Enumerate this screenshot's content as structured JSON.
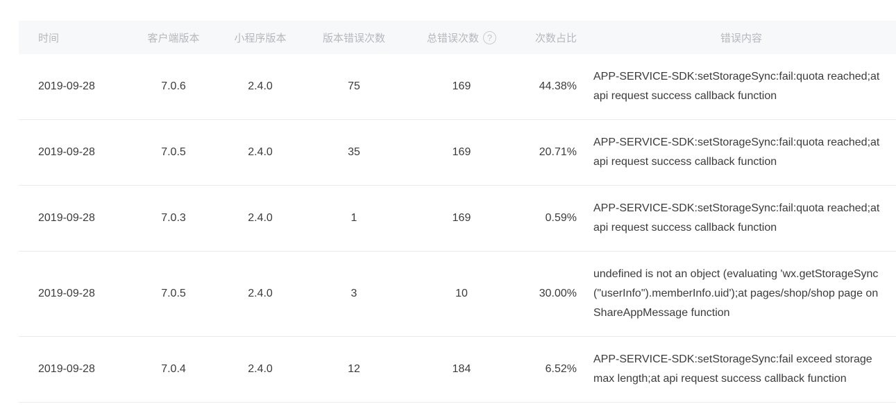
{
  "table": {
    "columns": {
      "time": {
        "label": "时间"
      },
      "client": {
        "label": "客户端版本"
      },
      "mini": {
        "label": "小程序版本"
      },
      "verr": {
        "label": "版本错误次数"
      },
      "terr": {
        "label": "总错误次数"
      },
      "ratio": {
        "label": "次数占比"
      },
      "content": {
        "label": "错误内容"
      }
    },
    "help_icon_glyph": "?",
    "rows": [
      {
        "time": "2019-09-28",
        "client": "7.0.6",
        "mini": "2.4.0",
        "verr": "75",
        "terr": "169",
        "ratio": "44.38%",
        "content": "APP-SERVICE-SDK:setStorageSync:fail:quota reached;at api request success callback function"
      },
      {
        "time": "2019-09-28",
        "client": "7.0.5",
        "mini": "2.4.0",
        "verr": "35",
        "terr": "169",
        "ratio": "20.71%",
        "content": "APP-SERVICE-SDK:setStorageSync:fail:quota reached;at api request success callback function"
      },
      {
        "time": "2019-09-28",
        "client": "7.0.3",
        "mini": "2.4.0",
        "verr": "1",
        "terr": "169",
        "ratio": "0.59%",
        "content": "APP-SERVICE-SDK:setStorageSync:fail:quota reached;at api request success callback function"
      },
      {
        "time": "2019-09-28",
        "client": "7.0.5",
        "mini": "2.4.0",
        "verr": "3",
        "terr": "10",
        "ratio": "30.00%",
        "content": "undefined is not an object (evaluating 'wx.getStorageSync(\"userInfo\").memberInfo.uid');at pages/shop/shop page onShareAppMessage function"
      },
      {
        "time": "2019-09-28",
        "client": "7.0.4",
        "mini": "2.4.0",
        "verr": "12",
        "terr": "184",
        "ratio": "6.52%",
        "content": "APP-SERVICE-SDK:setStorageSync:fail exceed storage max length;at api request success callback function"
      }
    ],
    "colors": {
      "header_bg": "#f7f8fa",
      "header_text": "#b5b8bd",
      "body_text": "#3b3b3b",
      "divider": "#eaeaea"
    }
  }
}
